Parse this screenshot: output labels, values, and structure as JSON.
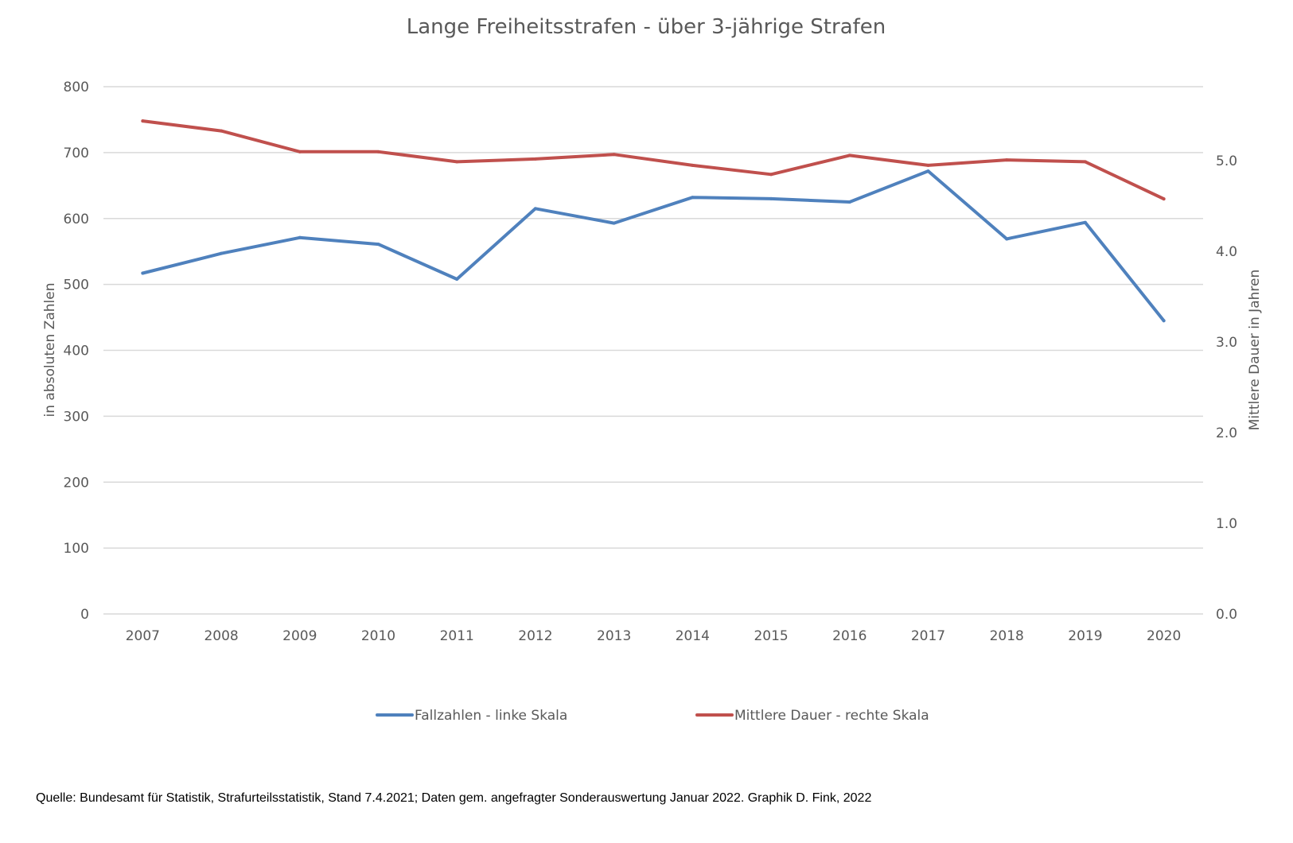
{
  "chart_data": {
    "type": "line",
    "title": "Lange Freiheitsstrafen - über 3-jährige Strafen",
    "x": [
      "2007",
      "2008",
      "2009",
      "2010",
      "2011",
      "2012",
      "2013",
      "2014",
      "2015",
      "2016",
      "2017",
      "2018",
      "2019",
      "2020"
    ],
    "y_left": {
      "label": "in absoluten Zahlen",
      "range": [
        0,
        800
      ],
      "ticks": [
        "0",
        "100",
        "200",
        "300",
        "400",
        "500",
        "600",
        "700",
        "800"
      ]
    },
    "y_right": {
      "label": "Mittlere Dauer in Jahren",
      "range": [
        0,
        5.818
      ],
      "ticks": [
        "0.0",
        "1.0",
        "2.0",
        "3.0",
        "4.0",
        "5.0"
      ]
    },
    "series": [
      {
        "name": "Fallzahlen - linke Skala",
        "axis": "left",
        "color": "#4F81BD",
        "values": [
          517,
          547,
          571,
          561,
          508,
          615,
          593,
          632,
          630,
          625,
          672,
          569,
          594,
          445
        ]
      },
      {
        "name": "Mittlere Dauer - rechte Skala",
        "axis": "right",
        "color": "#C0504D",
        "values": [
          5.44,
          5.33,
          5.1,
          5.1,
          4.99,
          5.02,
          5.07,
          4.95,
          4.85,
          5.06,
          4.95,
          5.01,
          4.99,
          4.58
        ]
      }
    ],
    "grid": true,
    "legend_position": "bottom"
  },
  "source_note": "Quelle: Bundesamt für Statistik, Strafurteilsstatistik, Stand 7.4.2021; Daten gem. angefragter Sonderauswertung Januar 2022. Graphik D. Fink, 2022"
}
